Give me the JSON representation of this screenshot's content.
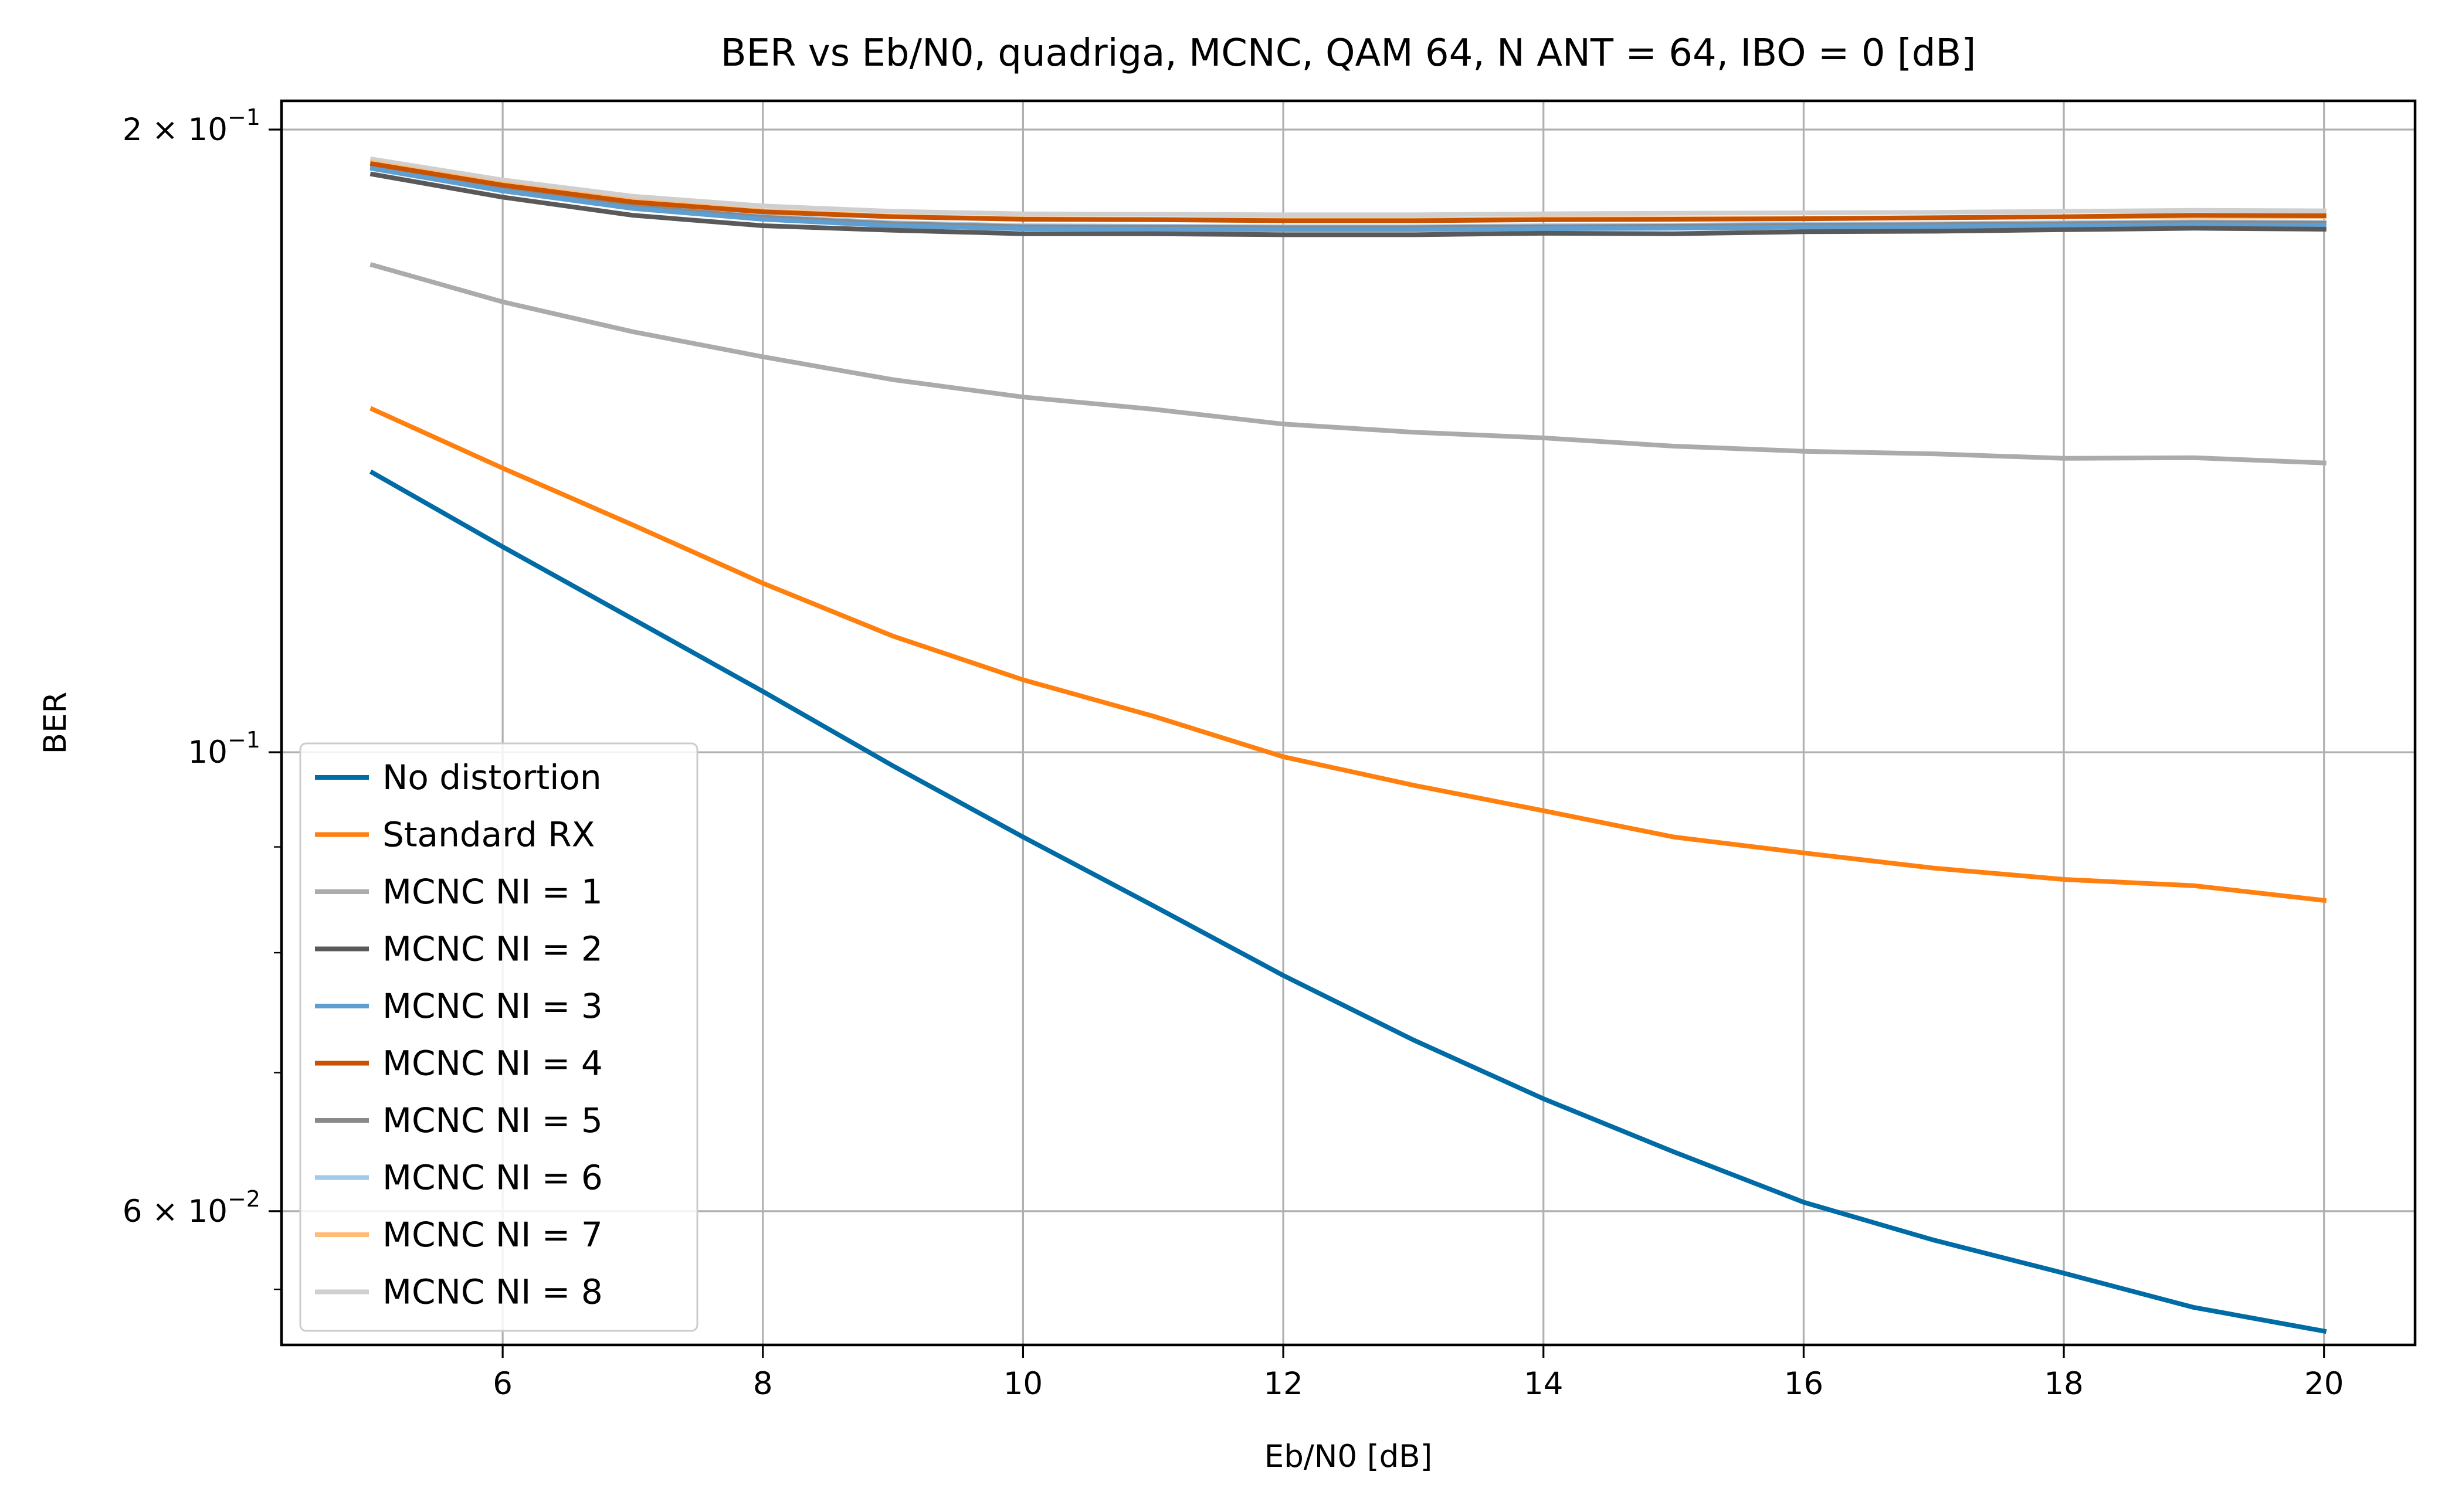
{
  "chart_data": {
    "type": "line",
    "title": "BER vs Eb/N0, quadriga, MCNC, QAM 64, N ANT = 64, IBO = 0 [dB]",
    "xlabel": "Eb/N0 [dB]",
    "ylabel": "BER",
    "yscale": "log",
    "xlim": [
      4.3,
      20.7
    ],
    "ylim": [
      0.0517,
      0.2065
    ],
    "grid": true,
    "legend_position": "lower-left",
    "x_ticks": [
      6,
      8,
      10,
      12,
      14,
      16,
      18,
      20
    ],
    "x_tick_labels": [
      "6",
      "8",
      "10",
      "12",
      "14",
      "16",
      "18",
      "20"
    ],
    "y_ticks_major": [
      {
        "value": 0.2,
        "label_base": "2 × 10",
        "label_exp": "−1"
      },
      {
        "value": 0.1,
        "label_base": "10",
        "label_exp": "−1"
      },
      {
        "value": 0.06,
        "label_base": "6 × 10",
        "label_exp": "−2"
      }
    ],
    "y_ticks_minor": [
      0.07,
      0.08,
      0.09,
      0.055
    ],
    "x": [
      5,
      6,
      7,
      8,
      9,
      10,
      11,
      12,
      13,
      14,
      15,
      16,
      17,
      18,
      19,
      20
    ],
    "series": [
      {
        "name": "No distortion",
        "color": "#006ba4",
        "values": [
          0.1365,
          0.1257,
          0.116,
          0.107,
          0.0985,
          0.091,
          0.0843,
          0.078,
          0.0726,
          0.068,
          0.0641,
          0.0606,
          0.0581,
          0.056,
          0.0539,
          0.0525
        ]
      },
      {
        "name": "Standard RX",
        "color": "#ff800e",
        "values": [
          0.1465,
          0.1372,
          0.1288,
          0.1207,
          0.1138,
          0.1084,
          0.1041,
          0.0995,
          0.0964,
          0.0937,
          0.091,
          0.0894,
          0.0879,
          0.0868,
          0.0862,
          0.0848
        ]
      },
      {
        "name": "MCNC NI = 1",
        "color": "#ababab",
        "values": [
          0.172,
          0.1651,
          0.1597,
          0.1553,
          0.1514,
          0.1485,
          0.1465,
          0.1441,
          0.1428,
          0.1419,
          0.1406,
          0.1398,
          0.1394,
          0.1387,
          0.1388,
          0.138
        ]
      },
      {
        "name": "MCNC NI = 2",
        "color": "#595959",
        "values": [
          0.1903,
          0.1855,
          0.1818,
          0.1797,
          0.1788,
          0.1781,
          0.1781,
          0.1779,
          0.1779,
          0.1782,
          0.1781,
          0.1785,
          0.1786,
          0.1789,
          0.1792,
          0.179
        ]
      },
      {
        "name": "MCNC NI = 3",
        "color": "#5f9ed1",
        "values": [
          0.1915,
          0.1868,
          0.1832,
          0.181,
          0.1797,
          0.1791,
          0.179,
          0.1789,
          0.1789,
          0.1791,
          0.1792,
          0.1794,
          0.1795,
          0.1797,
          0.1799,
          0.1798
        ]
      },
      {
        "name": "MCNC NI = 4",
        "color": "#c85200",
        "values": [
          0.1925,
          0.188,
          0.1845,
          0.1825,
          0.1815,
          0.181,
          0.1809,
          0.1807,
          0.1807,
          0.1809,
          0.181,
          0.1811,
          0.1813,
          0.1815,
          0.1818,
          0.1817
        ]
      },
      {
        "name": "MCNC NI = 5",
        "color": "#898989",
        "values": [
          0.1918,
          0.1872,
          0.1836,
          0.1814,
          0.1801,
          0.1795,
          0.1794,
          0.1793,
          0.1793,
          0.1795,
          0.1796,
          0.1798,
          0.1799,
          0.1801,
          0.1803,
          0.1802
        ]
      },
      {
        "name": "MCNC NI = 6",
        "color": "#a2c8ec",
        "values": [
          0.192,
          0.1874,
          0.1838,
          0.1816,
          0.1803,
          0.1797,
          0.1796,
          0.1795,
          0.1795,
          0.1797,
          0.1798,
          0.18,
          0.1801,
          0.1803,
          0.1805,
          0.1804
        ]
      },
      {
        "name": "MCNC NI = 7",
        "color": "#ffbc79",
        "values": [
          0.1928,
          0.1883,
          0.1848,
          0.1827,
          0.1816,
          0.1811,
          0.181,
          0.1809,
          0.1809,
          0.1811,
          0.1811,
          0.1812,
          0.1813,
          0.1815,
          0.1816,
          0.1815
        ]
      },
      {
        "name": "MCNC NI = 8",
        "color": "#cfcfcf",
        "values": [
          0.1935,
          0.1891,
          0.1857,
          0.1837,
          0.1826,
          0.1821,
          0.182,
          0.1819,
          0.1819,
          0.1821,
          0.1822,
          0.1823,
          0.1824,
          0.1826,
          0.1828,
          0.1827
        ]
      }
    ]
  }
}
